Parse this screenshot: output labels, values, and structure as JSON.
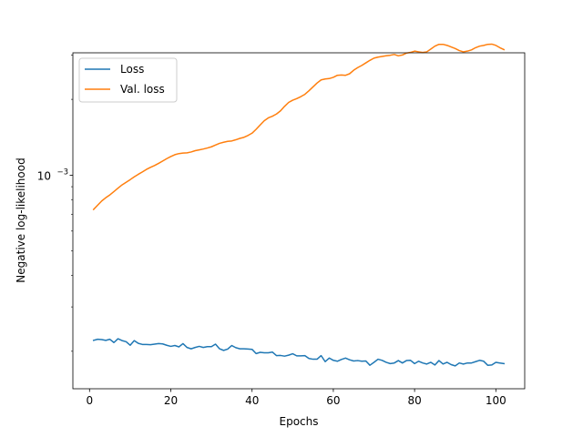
{
  "chart_data": {
    "type": "line",
    "xlabel": "Epochs",
    "ylabel": "Negative log-likelihood",
    "xlim": [
      -4.1,
      107.1
    ],
    "ylim": [
      0.000142,
      0.00306
    ],
    "yscale": "log",
    "xticks": [
      0,
      20,
      40,
      60,
      80,
      100
    ],
    "yticks": [
      {
        "value": 0.001,
        "base": "10",
        "exp": "−3"
      }
    ],
    "legend_position": "upper-left",
    "grid": false,
    "series": [
      {
        "name": "Loss",
        "color": "#1f77b4",
        "x": [
          1,
          2,
          3,
          4,
          5,
          6,
          7,
          8,
          9,
          10,
          11,
          12,
          13,
          14,
          15,
          16,
          17,
          18,
          19,
          20,
          21,
          22,
          23,
          24,
          25,
          26,
          27,
          28,
          29,
          30,
          31,
          32,
          33,
          34,
          35,
          36,
          37,
          38,
          39,
          40,
          41,
          42,
          43,
          44,
          45,
          46,
          47,
          48,
          49,
          50,
          51,
          52,
          53,
          54,
          55,
          56,
          57,
          58,
          59,
          60,
          61,
          62,
          63,
          64,
          65,
          66,
          67,
          68,
          69,
          70,
          71,
          72,
          73,
          74,
          75,
          76,
          77,
          78,
          79,
          80,
          81,
          82,
          83,
          84,
          85,
          86,
          87,
          88,
          89,
          90,
          91,
          92,
          93,
          94,
          95,
          96,
          97,
          98,
          99,
          100,
          101,
          102
        ],
        "values": [
          0.000221,
          0.0002232,
          0.0002226,
          0.000221,
          0.0002232,
          0.0002166,
          0.0002242,
          0.0002205,
          0.0002183,
          0.0002113,
          0.0002205,
          0.000215,
          0.0002129,
          0.0002129,
          0.0002124,
          0.0002134,
          0.0002145,
          0.0002139,
          0.0002113,
          0.0002092,
          0.0002108,
          0.0002082,
          0.0002145,
          0.0002071,
          0.0002046,
          0.0002071,
          0.0002092,
          0.0002072,
          0.0002087,
          0.0002087,
          0.0002134,
          0.0002046,
          0.0002016,
          0.0002041,
          0.0002108,
          0.0002067,
          0.0002046,
          0.0002046,
          0.0002041,
          0.0002036,
          0.0001958,
          0.0001981,
          0.0001973,
          0.0001973,
          0.0001985,
          0.0001922,
          0.0001925,
          0.0001913,
          0.000193,
          0.0001955,
          0.0001918,
          0.0001918,
          0.0001922,
          0.0001872,
          0.000186,
          0.000186,
          0.0001922,
          0.0001819,
          0.000188,
          0.0001841,
          0.0001826,
          0.0001856,
          0.000188,
          0.000185,
          0.000183,
          0.0001837,
          0.0001826,
          0.000183,
          0.000176,
          0.0001808,
          0.000186,
          0.0001841,
          0.0001808,
          0.0001787,
          0.0001797,
          0.0001837,
          0.0001797,
          0.0001837,
          0.0001841,
          0.0001787,
          0.0001826,
          0.0001797,
          0.000178,
          0.0001808,
          0.0001764,
          0.0001837,
          0.000178,
          0.0001808,
          0.000177,
          0.000175,
          0.0001797,
          0.000178,
          0.0001797,
          0.0001797,
          0.0001819,
          0.0001841,
          0.0001826,
          0.000176,
          0.0001764,
          0.0001808,
          0.0001797,
          0.0001787
        ]
      },
      {
        "name": "Val. loss",
        "color": "#ff7f0e",
        "x": [
          1,
          2,
          3,
          4,
          5,
          6,
          7,
          8,
          9,
          10,
          11,
          12,
          13,
          14,
          15,
          16,
          17,
          18,
          19,
          20,
          21,
          22,
          23,
          24,
          25,
          26,
          27,
          28,
          29,
          30,
          31,
          32,
          33,
          34,
          35,
          36,
          37,
          38,
          39,
          40,
          41,
          42,
          43,
          44,
          45,
          46,
          47,
          48,
          49,
          50,
          51,
          52,
          53,
          54,
          55,
          56,
          57,
          58,
          59,
          60,
          61,
          62,
          63,
          64,
          65,
          66,
          67,
          68,
          69,
          70,
          71,
          72,
          73,
          74,
          75,
          76,
          77,
          78,
          79,
          80,
          81,
          82,
          83,
          84,
          85,
          86,
          87,
          88,
          89,
          90,
          91,
          92,
          93,
          94,
          95,
          96,
          97,
          98,
          99,
          100,
          101,
          102
        ],
        "values": [
          0.000731,
          0.00076,
          0.00079,
          0.000814,
          0.000835,
          0.000861,
          0.000888,
          0.000915,
          0.000937,
          0.00096,
          0.000985,
          0.001008,
          0.00103,
          0.001054,
          0.001074,
          0.001092,
          0.001114,
          0.001138,
          0.001163,
          0.001186,
          0.001206,
          0.001218,
          0.001224,
          0.001227,
          0.001236,
          0.001251,
          0.00126,
          0.00127,
          0.001282,
          0.001296,
          0.001317,
          0.001338,
          0.001351,
          0.001362,
          0.001367,
          0.001382,
          0.0014,
          0.001413,
          0.001438,
          0.001468,
          0.001521,
          0.001583,
          0.001645,
          0.001688,
          0.001714,
          0.001749,
          0.0018,
          0.001876,
          0.001944,
          0.001984,
          0.002013,
          0.00205,
          0.002094,
          0.002163,
          0.002241,
          0.002321,
          0.002389,
          0.002409,
          0.002418,
          0.002446,
          0.002491,
          0.002499,
          0.002491,
          0.002527,
          0.002609,
          0.002673,
          0.002727,
          0.002791,
          0.002856,
          0.002914,
          0.002942,
          0.002959,
          0.002977,
          0.002992,
          0.003014,
          0.002977,
          0.002999,
          0.003052,
          0.003072,
          0.003107,
          0.003087,
          0.003069,
          0.003087,
          0.003167,
          0.003252,
          0.003306,
          0.003306,
          0.003275,
          0.003228,
          0.003182,
          0.003122,
          0.003087,
          0.003107,
          0.003142,
          0.003206,
          0.003252,
          0.003275,
          0.003306,
          0.003313,
          0.003275,
          0.003206,
          0.00315
        ]
      }
    ]
  }
}
